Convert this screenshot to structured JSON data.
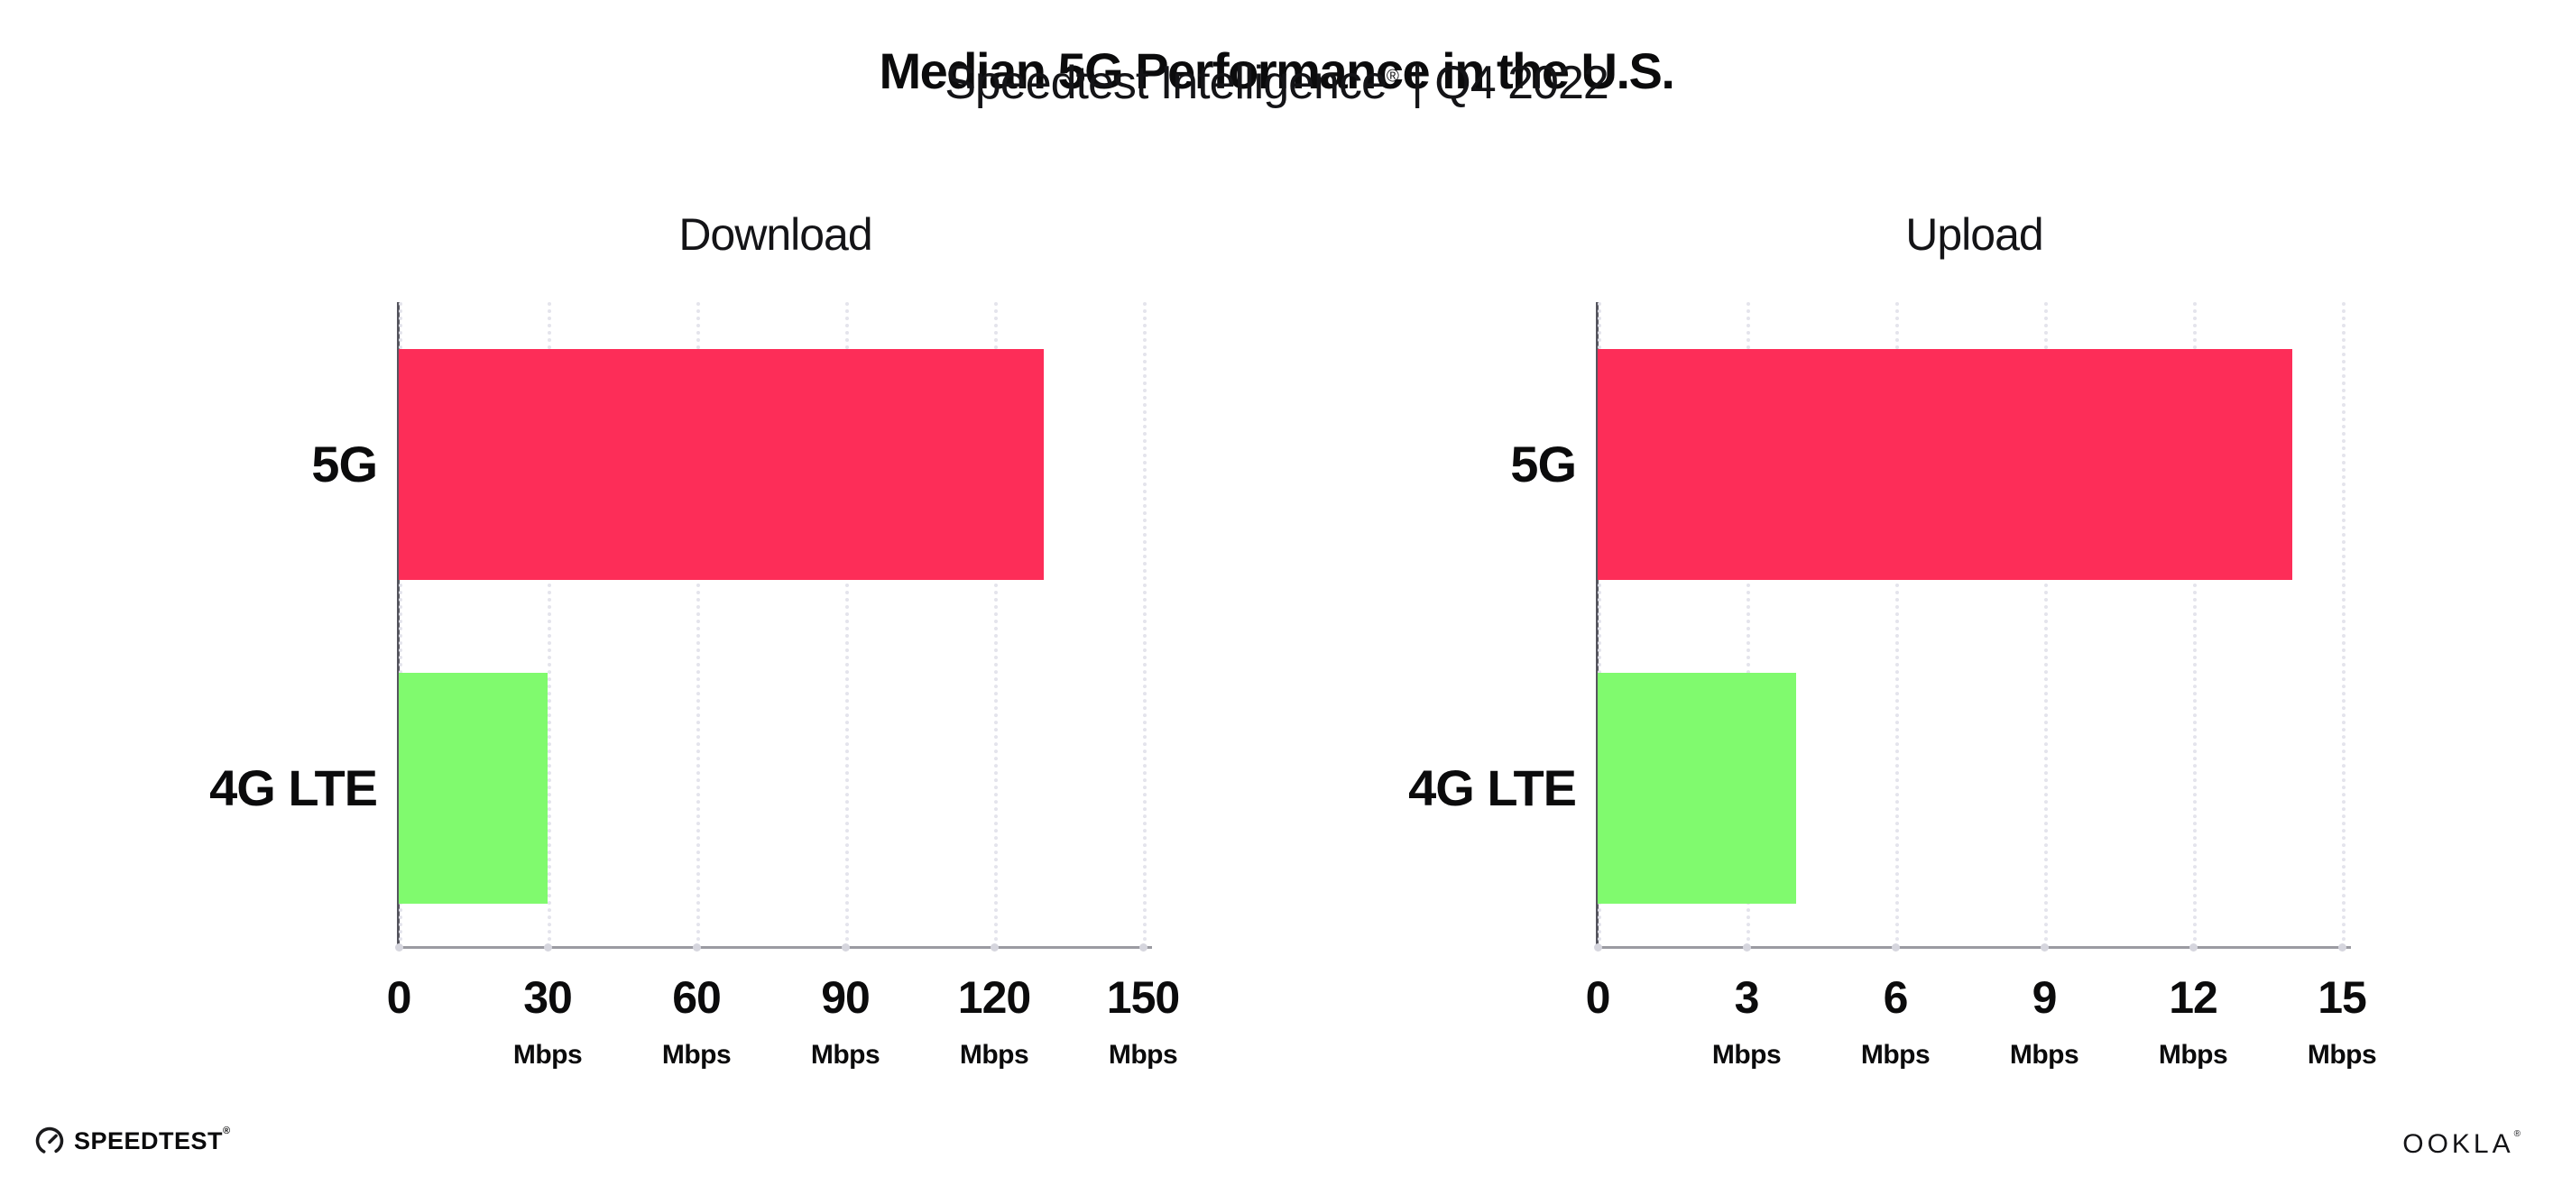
{
  "header": {
    "title": "Median 5G Performance in the U.S.",
    "subtitle_brand": "Speedtest Intelligence",
    "subtitle_reg": "®",
    "subtitle_rest": " | Q4 2022"
  },
  "chart_data": [
    {
      "type": "bar",
      "orientation": "horizontal",
      "title": "Download",
      "categories": [
        "5G",
        "4G LTE"
      ],
      "values": [
        130,
        30
      ],
      "unit": "Mbps",
      "xlim": [
        0,
        150
      ],
      "xticks": [
        0,
        30,
        60,
        90,
        120,
        150
      ],
      "xtick_unit_label": "Mbps",
      "grid": "dotted-vertical",
      "legend": "none",
      "bar_colors": [
        "#FD2D58",
        "#80FA6E"
      ]
    },
    {
      "type": "bar",
      "orientation": "horizontal",
      "title": "Upload",
      "categories": [
        "5G",
        "4G LTE"
      ],
      "values": [
        14,
        4
      ],
      "unit": "Mbps",
      "xlim": [
        0,
        15
      ],
      "xticks": [
        0,
        3,
        6,
        9,
        12,
        15
      ],
      "xtick_unit_label": "Mbps",
      "grid": "dotted-vertical",
      "legend": "none",
      "bar_colors": [
        "#FD2D58",
        "#80FA6E"
      ]
    }
  ],
  "colors": {
    "bar_5g": "#FD2D58",
    "bar_4g_lte": "#80FA6E",
    "gridline": "#e4e4ec",
    "y_axis": "#55555e",
    "x_axis": "#9b9ba2",
    "text": "#0b0b0c"
  },
  "footer": {
    "speedtest_label": "SPEEDTEST",
    "speedtest_reg": "®",
    "ookla_label": "OOKLA",
    "ookla_reg": "®"
  }
}
